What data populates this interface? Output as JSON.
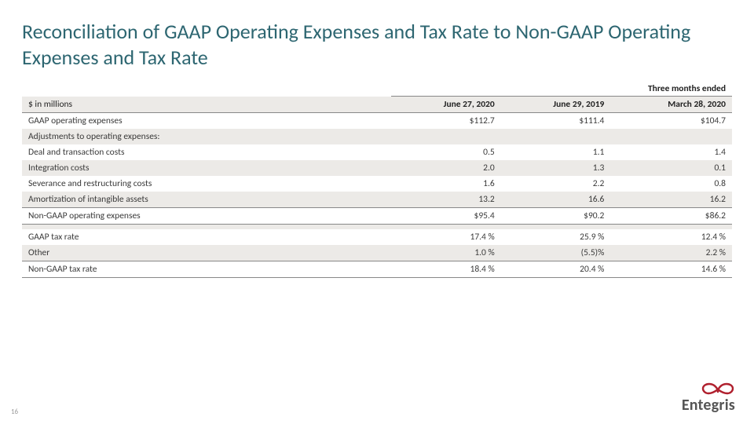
{
  "title": "Reconciliation of GAAP Operating Expenses and Tax Rate to Non-GAAP Operating Expenses and Tax Rate",
  "table": {
    "super_header": "Three months ended",
    "unit_label": "$ in millions",
    "columns": [
      "June 27, 2020",
      "June 29, 2019",
      "March 28, 2020"
    ],
    "rows": [
      {
        "label": "GAAP operating expenses",
        "vals": [
          "$112.7",
          "$111.4",
          "$104.7"
        ],
        "alt": false,
        "rule_top": false
      },
      {
        "label": "Adjustments to operating expenses:",
        "vals": [
          "",
          "",
          ""
        ],
        "alt": true,
        "rule_top": false
      },
      {
        "label": "Deal and transaction costs",
        "vals": [
          "0.5",
          "1.1",
          "1.4"
        ],
        "alt": false,
        "rule_top": false
      },
      {
        "label": "Integration costs",
        "vals": [
          "2.0",
          "1.3",
          "0.1"
        ],
        "alt": true,
        "rule_top": false
      },
      {
        "label": "Severance and restructuring costs",
        "vals": [
          "1.6",
          "2.2",
          "0.8"
        ],
        "alt": false,
        "rule_top": false
      },
      {
        "label": "Amortization of intangible assets",
        "vals": [
          "13.2",
          "16.6",
          "16.2"
        ],
        "alt": true,
        "rule_top": false
      },
      {
        "label": "Non-GAAP operating expenses",
        "vals": [
          "$95.4",
          "$90.2",
          "$86.2"
        ],
        "alt": false,
        "rule_top": true,
        "rule_bottom": true
      }
    ],
    "gap_row": {
      "alt": true
    },
    "rows2": [
      {
        "label": "GAAP tax rate",
        "vals": [
          "17.4 %",
          "25.9 %",
          "12.4 %"
        ],
        "alt": false,
        "rule_top": false
      },
      {
        "label": "Other",
        "vals": [
          "1.0 %",
          "(5.5)%",
          "2.2 %"
        ],
        "alt": true,
        "rule_top": false
      },
      {
        "label": "Non-GAAP tax rate",
        "vals": [
          "18.4 %",
          "20.4 %",
          "14.6 %"
        ],
        "alt": false,
        "rule_top": true,
        "rule_bottom": true
      }
    ]
  },
  "page_number": "16",
  "logo_text": "Entegris",
  "colors": {
    "title": "#2d6671",
    "alt_row": "#eceae7",
    "rule": "#888888",
    "logo_red": "#b0202e",
    "logo_text": "#555555"
  }
}
